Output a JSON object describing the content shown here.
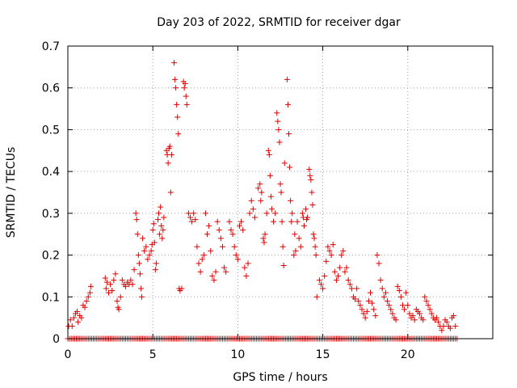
{
  "chart_data": {
    "type": "scatter",
    "title": "Day 203 of 2022, SRMTID for receiver dgar",
    "xlabel": "GPS time / hours",
    "ylabel": "SRMTID / TECUs",
    "xlim": [
      0,
      25
    ],
    "ylim": [
      0,
      0.7
    ],
    "xticks": [
      0,
      5,
      10,
      15,
      20
    ],
    "xtick_labels": [
      "0",
      "5",
      "10",
      "15",
      "20"
    ],
    "yticks": [
      0,
      0.1,
      0.2,
      0.3,
      0.4,
      0.5,
      0.6,
      0.7
    ],
    "ytick_labels": [
      "0",
      "0.1",
      "0.2",
      "0.3",
      "0.4",
      "0.5",
      "0.6",
      "0.7"
    ],
    "grid": true,
    "marker": "+",
    "color": "#e00000",
    "series": [
      {
        "name": "SRMTID",
        "points": [
          [
            0.05,
            0.03
          ],
          [
            0.15,
            0.045
          ],
          [
            0.25,
            0.03
          ],
          [
            0.35,
            0.05
          ],
          [
            0.45,
            0.06
          ],
          [
            0.55,
            0.065
          ],
          [
            0.6,
            0.04
          ],
          [
            0.7,
            0.055
          ],
          [
            0.8,
            0.05
          ],
          [
            0.9,
            0.08
          ],
          [
            1.0,
            0.075
          ],
          [
            1.1,
            0.09
          ],
          [
            1.2,
            0.1
          ],
          [
            1.3,
            0.11
          ],
          [
            1.35,
            0.125
          ],
          [
            2.2,
            0.145
          ],
          [
            2.25,
            0.12
          ],
          [
            2.3,
            0.135
          ],
          [
            2.4,
            0.11
          ],
          [
            2.5,
            0.13
          ],
          [
            2.6,
            0.115
          ],
          [
            2.7,
            0.14
          ],
          [
            2.8,
            0.155
          ],
          [
            2.9,
            0.09
          ],
          [
            2.95,
            0.075
          ],
          [
            3.0,
            0.07
          ],
          [
            3.1,
            0.1
          ],
          [
            3.2,
            0.14
          ],
          [
            3.3,
            0.13
          ],
          [
            3.4,
            0.125
          ],
          [
            3.5,
            0.135
          ],
          [
            3.6,
            0.13
          ],
          [
            3.7,
            0.14
          ],
          [
            3.8,
            0.13
          ],
          [
            3.9,
            0.165
          ],
          [
            4.0,
            0.3
          ],
          [
            4.05,
            0.285
          ],
          [
            4.1,
            0.25
          ],
          [
            4.15,
            0.2
          ],
          [
            4.2,
            0.18
          ],
          [
            4.25,
            0.155
          ],
          [
            4.3,
            0.12
          ],
          [
            4.35,
            0.1
          ],
          [
            4.4,
            0.24
          ],
          [
            4.5,
            0.21
          ],
          [
            4.6,
            0.22
          ],
          [
            4.7,
            0.19
          ],
          [
            4.8,
            0.2
          ],
          [
            4.9,
            0.21
          ],
          [
            4.95,
            0.225
          ],
          [
            5.0,
            0.26
          ],
          [
            5.05,
            0.275
          ],
          [
            5.1,
            0.23
          ],
          [
            5.15,
            0.165
          ],
          [
            5.2,
            0.18
          ],
          [
            5.3,
            0.285
          ],
          [
            5.35,
            0.3
          ],
          [
            5.4,
            0.25
          ],
          [
            5.45,
            0.315
          ],
          [
            5.5,
            0.27
          ],
          [
            5.55,
            0.24
          ],
          [
            5.6,
            0.26
          ],
          [
            5.65,
            0.29
          ],
          [
            5.8,
            0.45
          ],
          [
            5.85,
            0.44
          ],
          [
            5.9,
            0.42
          ],
          [
            5.95,
            0.455
          ],
          [
            6.0,
            0.46
          ],
          [
            6.05,
            0.35
          ],
          [
            6.1,
            0.44
          ],
          [
            6.25,
            0.66
          ],
          [
            6.3,
            0.62
          ],
          [
            6.35,
            0.6
          ],
          [
            6.4,
            0.56
          ],
          [
            6.45,
            0.53
          ],
          [
            6.5,
            0.49
          ],
          [
            6.55,
            0.12
          ],
          [
            6.6,
            0.115
          ],
          [
            6.7,
            0.12
          ],
          [
            6.8,
            0.615
          ],
          [
            6.85,
            0.6
          ],
          [
            6.9,
            0.61
          ],
          [
            6.95,
            0.58
          ],
          [
            7.0,
            0.56
          ],
          [
            7.1,
            0.3
          ],
          [
            7.2,
            0.29
          ],
          [
            7.3,
            0.28
          ],
          [
            7.4,
            0.3
          ],
          [
            7.5,
            0.285
          ],
          [
            7.6,
            0.22
          ],
          [
            7.7,
            0.18
          ],
          [
            7.8,
            0.16
          ],
          [
            7.9,
            0.19
          ],
          [
            8.0,
            0.2
          ],
          [
            8.1,
            0.3
          ],
          [
            8.2,
            0.25
          ],
          [
            8.3,
            0.27
          ],
          [
            8.4,
            0.21
          ],
          [
            8.5,
            0.15
          ],
          [
            8.6,
            0.14
          ],
          [
            8.7,
            0.16
          ],
          [
            8.8,
            0.28
          ],
          [
            8.9,
            0.26
          ],
          [
            9.0,
            0.24
          ],
          [
            9.1,
            0.22
          ],
          [
            9.2,
            0.17
          ],
          [
            9.3,
            0.16
          ],
          [
            9.5,
            0.28
          ],
          [
            9.6,
            0.26
          ],
          [
            9.7,
            0.25
          ],
          [
            9.8,
            0.22
          ],
          [
            9.9,
            0.2
          ],
          [
            10.0,
            0.19
          ],
          [
            10.1,
            0.27
          ],
          [
            10.2,
            0.28
          ],
          [
            10.3,
            0.26
          ],
          [
            10.4,
            0.17
          ],
          [
            10.5,
            0.15
          ],
          [
            10.6,
            0.18
          ],
          [
            10.7,
            0.3
          ],
          [
            10.8,
            0.33
          ],
          [
            10.9,
            0.31
          ],
          [
            11.0,
            0.29
          ],
          [
            11.2,
            0.36
          ],
          [
            11.3,
            0.37
          ],
          [
            11.35,
            0.33
          ],
          [
            11.4,
            0.35
          ],
          [
            11.5,
            0.24
          ],
          [
            11.55,
            0.23
          ],
          [
            11.6,
            0.25
          ],
          [
            11.7,
            0.3
          ],
          [
            11.8,
            0.45
          ],
          [
            11.85,
            0.44
          ],
          [
            11.9,
            0.39
          ],
          [
            11.95,
            0.34
          ],
          [
            12.0,
            0.31
          ],
          [
            12.1,
            0.28
          ],
          [
            12.2,
            0.3
          ],
          [
            12.3,
            0.54
          ],
          [
            12.35,
            0.52
          ],
          [
            12.4,
            0.5
          ],
          [
            12.45,
            0.47
          ],
          [
            12.5,
            0.37
          ],
          [
            12.55,
            0.35
          ],
          [
            12.6,
            0.28
          ],
          [
            12.65,
            0.22
          ],
          [
            12.7,
            0.175
          ],
          [
            12.75,
            0.42
          ],
          [
            12.9,
            0.62
          ],
          [
            12.95,
            0.56
          ],
          [
            13.0,
            0.49
          ],
          [
            13.05,
            0.41
          ],
          [
            13.1,
            0.33
          ],
          [
            13.15,
            0.28
          ],
          [
            13.2,
            0.3
          ],
          [
            13.3,
            0.2
          ],
          [
            13.35,
            0.25
          ],
          [
            13.4,
            0.21
          ],
          [
            13.5,
            0.28
          ],
          [
            13.6,
            0.24
          ],
          [
            13.7,
            0.22
          ],
          [
            13.8,
            0.3
          ],
          [
            13.85,
            0.29
          ],
          [
            13.9,
            0.27
          ],
          [
            14.0,
            0.31
          ],
          [
            14.05,
            0.285
          ],
          [
            14.1,
            0.29
          ],
          [
            14.2,
            0.405
          ],
          [
            14.25,
            0.39
          ],
          [
            14.3,
            0.38
          ],
          [
            14.35,
            0.35
          ],
          [
            14.4,
            0.32
          ],
          [
            14.45,
            0.25
          ],
          [
            14.5,
            0.24
          ],
          [
            14.55,
            0.22
          ],
          [
            14.6,
            0.2
          ],
          [
            14.65,
            0.1
          ],
          [
            14.8,
            0.14
          ],
          [
            14.9,
            0.13
          ],
          [
            15.0,
            0.12
          ],
          [
            15.1,
            0.15
          ],
          [
            15.2,
            0.185
          ],
          [
            15.3,
            0.22
          ],
          [
            15.4,
            0.21
          ],
          [
            15.5,
            0.2
          ],
          [
            15.6,
            0.225
          ],
          [
            15.7,
            0.16
          ],
          [
            15.8,
            0.14
          ],
          [
            15.9,
            0.15
          ],
          [
            16.0,
            0.17
          ],
          [
            16.1,
            0.2
          ],
          [
            16.2,
            0.21
          ],
          [
            16.3,
            0.16
          ],
          [
            16.4,
            0.17
          ],
          [
            16.5,
            0.14
          ],
          [
            16.6,
            0.13
          ],
          [
            16.7,
            0.12
          ],
          [
            16.8,
            0.1
          ],
          [
            16.9,
            0.095
          ],
          [
            17.0,
            0.12
          ],
          [
            17.1,
            0.09
          ],
          [
            17.2,
            0.08
          ],
          [
            17.3,
            0.07
          ],
          [
            17.4,
            0.06
          ],
          [
            17.5,
            0.05
          ],
          [
            17.6,
            0.065
          ],
          [
            17.7,
            0.09
          ],
          [
            17.8,
            0.11
          ],
          [
            17.9,
            0.085
          ],
          [
            18.0,
            0.07
          ],
          [
            18.1,
            0.055
          ],
          [
            18.2,
            0.2
          ],
          [
            18.3,
            0.18
          ],
          [
            18.4,
            0.14
          ],
          [
            18.5,
            0.12
          ],
          [
            18.6,
            0.1
          ],
          [
            18.7,
            0.11
          ],
          [
            18.8,
            0.09
          ],
          [
            18.9,
            0.08
          ],
          [
            19.0,
            0.07
          ],
          [
            19.1,
            0.06
          ],
          [
            19.2,
            0.05
          ],
          [
            19.3,
            0.045
          ],
          [
            19.4,
            0.125
          ],
          [
            19.5,
            0.115
          ],
          [
            19.6,
            0.1
          ],
          [
            19.7,
            0.08
          ],
          [
            19.8,
            0.07
          ],
          [
            19.9,
            0.11
          ],
          [
            20.0,
            0.08
          ],
          [
            20.1,
            0.06
          ],
          [
            20.2,
            0.05
          ],
          [
            20.3,
            0.055
          ],
          [
            20.4,
            0.045
          ],
          [
            20.5,
            0.07
          ],
          [
            20.6,
            0.065
          ],
          [
            20.7,
            0.06
          ],
          [
            20.8,
            0.05
          ],
          [
            20.9,
            0.045
          ],
          [
            21.0,
            0.1
          ],
          [
            21.1,
            0.09
          ],
          [
            21.2,
            0.08
          ],
          [
            21.3,
            0.07
          ],
          [
            21.4,
            0.06
          ],
          [
            21.5,
            0.05
          ],
          [
            21.6,
            0.045
          ],
          [
            21.7,
            0.05
          ],
          [
            21.8,
            0.04
          ],
          [
            21.9,
            0.03
          ],
          [
            22.0,
            0.02
          ],
          [
            22.1,
            0.03
          ],
          [
            22.2,
            0.045
          ],
          [
            22.3,
            0.04
          ],
          [
            22.4,
            0.03
          ],
          [
            22.5,
            0.025
          ],
          [
            22.6,
            0.05
          ],
          [
            22.7,
            0.055
          ],
          [
            22.8,
            0.03
          ]
        ],
        "zero_points": {
          "start": 0.0,
          "end": 22.9,
          "step": 0.1,
          "value": 0
        }
      }
    ]
  }
}
